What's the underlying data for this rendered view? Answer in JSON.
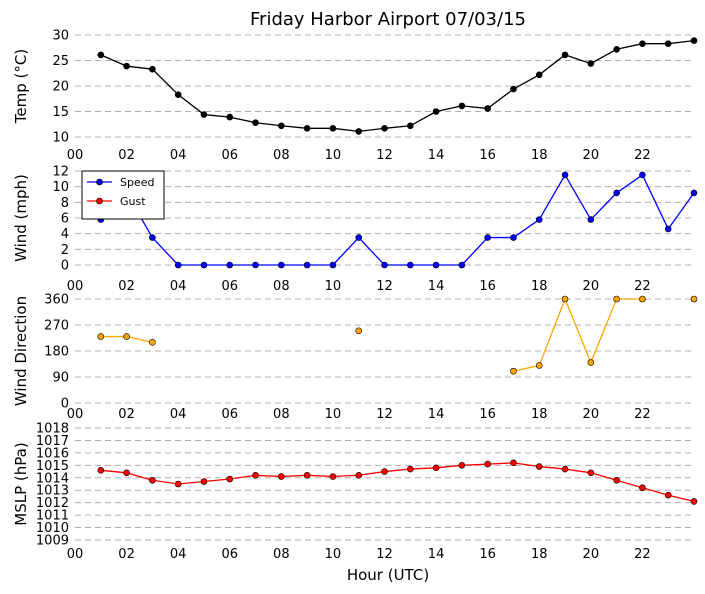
{
  "chart_data": {
    "title": "Friday Harbor Airport 07/03/15",
    "xlabel": "Hour (UTC)",
    "x_tick_labels": [
      "00",
      "02",
      "04",
      "06",
      "08",
      "10",
      "12",
      "14",
      "16",
      "18",
      "20",
      "22"
    ],
    "xlim": [
      0,
      24
    ],
    "panels": [
      {
        "type": "line",
        "ylabel": "Temp (°C)",
        "ylim": [
          10,
          30
        ],
        "y_ticks": [
          "10",
          "15",
          "20",
          "25",
          "30"
        ],
        "grid": true,
        "legend": null,
        "series": [
          {
            "color": "#000000",
            "x": [
              1,
              2,
              3,
              4,
              5,
              6,
              7,
              8,
              9,
              10,
              11,
              12,
              13,
              14,
              15,
              16,
              17,
              18,
              19,
              20,
              21,
              22,
              23,
              24
            ],
            "values": [
              26.1,
              23.9,
              23.3,
              18.3,
              14.4,
              13.9,
              12.8,
              12.2,
              11.7,
              11.7,
              11.1,
              11.7,
              12.2,
              15.0,
              16.1,
              15.6,
              19.4,
              22.2,
              26.1,
              24.4,
              27.2,
              28.3,
              28.3,
              28.9
            ]
          }
        ]
      },
      {
        "type": "line",
        "ylabel": "Wind (mph)",
        "ylim": [
          0,
          12
        ],
        "y_ticks": [
          "0",
          "2",
          "4",
          "6",
          "8",
          "10",
          "12"
        ],
        "grid": true,
        "legend": "top-left",
        "series": [
          {
            "name": "Speed",
            "color": "#0000ff",
            "x": [
              1,
              2,
              3,
              4,
              5,
              6,
              7,
              8,
              9,
              10,
              11,
              12,
              13,
              14,
              15,
              16,
              17,
              18,
              19,
              20,
              21,
              22,
              23,
              24
            ],
            "values": [
              5.8,
              9.2,
              3.5,
              0,
              0,
              0,
              0,
              0,
              0,
              0,
              3.5,
              0,
              0,
              0,
              0,
              3.5,
              3.5,
              5.8,
              11.5,
              5.8,
              9.2,
              11.5,
              4.6,
              9.2
            ]
          },
          {
            "name": "Gust",
            "color": "#ff0000",
            "x": [],
            "values": []
          }
        ]
      },
      {
        "type": "line",
        "ylabel": "Wind Direction",
        "ylim": [
          0,
          360
        ],
        "y_ticks": [
          "0",
          "90",
          "180",
          "270",
          "360"
        ],
        "grid": true,
        "legend": null,
        "series": [
          {
            "color": "#ffa500",
            "x": [
              1,
              2,
              3,
              null,
              11,
              null,
              17,
              18,
              19,
              20,
              21,
              22,
              null,
              24
            ],
            "values": [
              230,
              230,
              210,
              null,
              250,
              null,
              110,
              130,
              360,
              140,
              360,
              360,
              null,
              360
            ]
          }
        ]
      },
      {
        "type": "line",
        "ylabel": "MSLP (hPa)",
        "ylim": [
          1009,
          1018
        ],
        "y_ticks": [
          "1009",
          "1010",
          "1011",
          "1012",
          "1013",
          "1014",
          "1015",
          "1016",
          "1017",
          "1018"
        ],
        "grid": true,
        "legend": null,
        "series": [
          {
            "color": "#ff0000",
            "x": [
              1,
              2,
              3,
              4,
              5,
              6,
              7,
              8,
              9,
              10,
              11,
              12,
              13,
              14,
              15,
              16,
              17,
              18,
              19,
              20,
              21,
              22,
              23,
              24
            ],
            "values": [
              1014.6,
              1014.4,
              1013.8,
              1013.5,
              1013.7,
              1013.9,
              1014.2,
              1014.1,
              1014.2,
              1014.1,
              1014.2,
              1014.5,
              1014.7,
              1014.8,
              1015.0,
              1015.1,
              1015.2,
              1014.9,
              1014.7,
              1014.4,
              1013.8,
              1013.2,
              1012.6,
              1012.1
            ]
          }
        ]
      }
    ]
  }
}
